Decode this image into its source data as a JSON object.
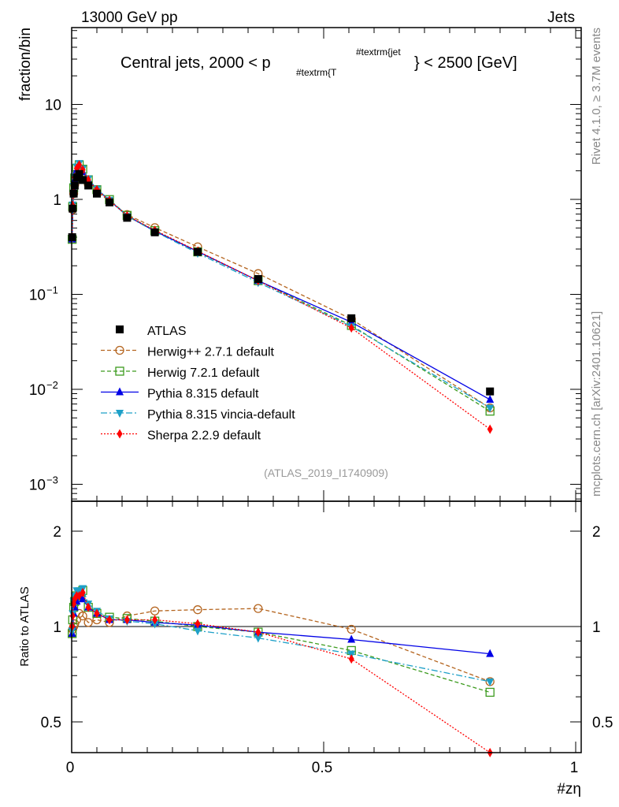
{
  "header": {
    "left": "13000 GeV pp",
    "right": "Jets"
  },
  "side": {
    "rivet": "Rivet 4.1.0, ≥ 3.7M events",
    "mcplots": "mcplots.cern.ch [arXiv:2401.10621]"
  },
  "chart_data": [
    {
      "type": "scatter",
      "title": "Central jets, 2000 < p_{#textrm{T}}^{#textrm{jet}} < 2500 [GeV]",
      "title_main": "Central jets, 2000 < p",
      "title_sub": "#textrm{T",
      "title_sup": "#textrm{jet",
      "title_end": "} < 2500 [GeV]",
      "ylabel": "fraction/bin",
      "xlabel": "#zη",
      "yscale": "log",
      "ylim": [
        0.00066,
        65
      ],
      "xlim": [
        0,
        1.01
      ],
      "yticks": [
        {
          "v": 10,
          "label": "10"
        },
        {
          "v": 1,
          "label": "1"
        },
        {
          "v": 0.1,
          "label": "10",
          "exp": "−1"
        },
        {
          "v": 0.01,
          "label": "10",
          "exp": "−2"
        },
        {
          "v": 0.001,
          "label": "10",
          "exp": "−3"
        }
      ],
      "analysis": "(ATLAS_2019_I1740909)",
      "legend_position": "lower-left",
      "x": [
        0.001,
        0.002,
        0.004,
        0.006,
        0.01,
        0.015,
        0.022,
        0.033,
        0.05,
        0.075,
        0.11,
        0.165,
        0.25,
        0.37,
        0.555,
        0.83
      ],
      "data": {
        "name": "ATLAS",
        "color": "#000000",
        "values": [
          0.4,
          0.8,
          1.15,
          1.4,
          1.7,
          1.85,
          1.6,
          1.4,
          1.15,
          0.93,
          0.64,
          0.45,
          0.28,
          0.145,
          0.056,
          0.0095
        ]
      },
      "series": [
        {
          "name": "Herwig++ 2.7.1 default",
          "color": "#b4641e",
          "marker": "circle",
          "dash": "5,3",
          "ratio": [
            0.95,
            0.98,
            1.0,
            1.02,
            1.05,
            1.1,
            1.08,
            1.03,
            1.05,
            1.03,
            1.08,
            1.12,
            1.13,
            1.14,
            0.98,
            0.67
          ]
        },
        {
          "name": "Herwig 7.2.1 default",
          "color": "#3c9b1e",
          "marker": "square",
          "dash": "5,3",
          "ratio": [
            0.95,
            1.05,
            1.15,
            1.2,
            1.25,
            1.25,
            1.3,
            1.15,
            1.1,
            1.07,
            1.06,
            1.04,
            1.0,
            0.96,
            0.84,
            0.62
          ]
        },
        {
          "name": "Pythia 8.315 default",
          "color": "#0000e6",
          "marker": "triangle-up",
          "dash": "",
          "ratio": [
            0.95,
            1.0,
            1.1,
            1.15,
            1.2,
            1.25,
            1.22,
            1.15,
            1.1,
            1.05,
            1.05,
            1.03,
            1.01,
            0.96,
            0.91,
            0.82
          ]
        },
        {
          "name": "Pythia 8.315 vincia-default",
          "color": "#1ea0c8",
          "marker": "triangle-down",
          "dash": "8,3,2,3",
          "ratio": [
            0.97,
            1.1,
            1.2,
            1.25,
            1.3,
            1.3,
            1.32,
            1.18,
            1.12,
            1.06,
            1.04,
            1.02,
            0.97,
            0.92,
            0.82,
            0.67
          ]
        },
        {
          "name": "Sherpa 2.2.9 default",
          "color": "#ff0000",
          "marker": "diamond",
          "dash": "2,2",
          "ratio": [
            1.0,
            1.08,
            1.18,
            1.22,
            1.25,
            1.25,
            1.28,
            1.15,
            1.1,
            1.05,
            1.05,
            1.05,
            1.02,
            0.96,
            0.79,
            0.4
          ]
        }
      ]
    },
    {
      "type": "line",
      "ylabel": "Ratio to ATLAS",
      "yscale": "log",
      "ylim": [
        0.4,
        2.48
      ],
      "yticks": [
        {
          "v": 2,
          "label": "2"
        },
        {
          "v": 1,
          "label": "1"
        },
        {
          "v": 0.5,
          "label": "0.5"
        }
      ],
      "xticks": [
        {
          "v": 0,
          "label": "0"
        },
        {
          "v": 0.5,
          "label": "0.5"
        },
        {
          "v": 1,
          "label": "1"
        }
      ]
    }
  ]
}
